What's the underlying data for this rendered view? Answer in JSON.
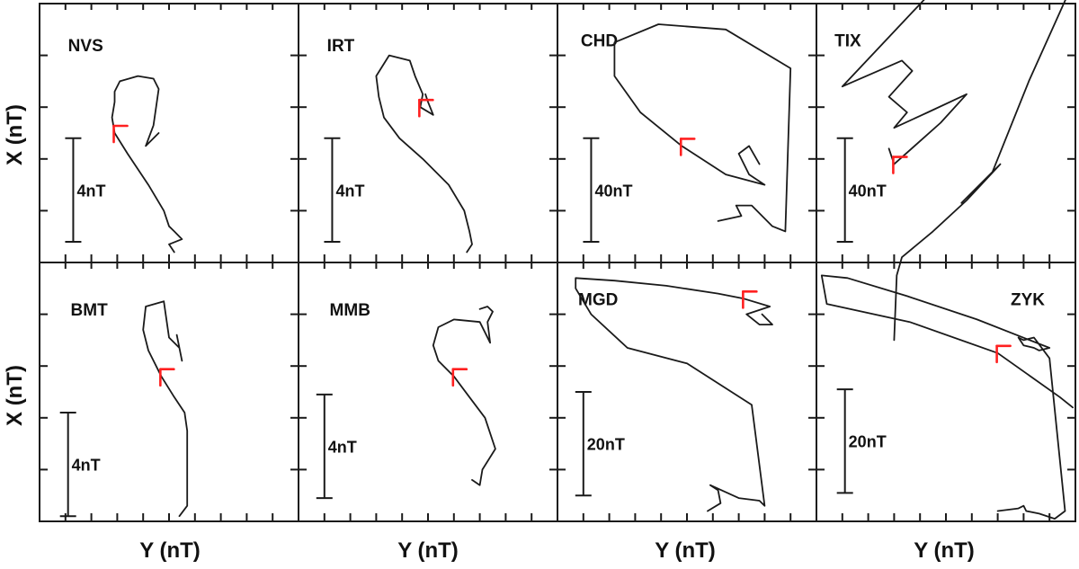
{
  "chart_data": {
    "type": "line",
    "title": "",
    "xlabel": "Y (nT)",
    "ylabel": "X (nT)",
    "ylabels": [
      "X (nT)",
      "X (nT)"
    ],
    "xlabels": [
      "Y (nT)",
      "Y (nT)",
      "Y (nT)",
      "Y (nT)"
    ],
    "grid": false,
    "legend": "none",
    "colors": {
      "trace": "#1a1a1a",
      "marker": "#ff2020",
      "frame": "#1a1a1a"
    },
    "panels": [
      {
        "station": "NVS",
        "scale_label": "4nT",
        "trace": [
          [
            0.52,
            0.96
          ],
          [
            0.5,
            0.93
          ],
          [
            0.55,
            0.91
          ],
          [
            0.52,
            0.88
          ],
          [
            0.5,
            0.86
          ],
          [
            0.48,
            0.8
          ],
          [
            0.42,
            0.7
          ],
          [
            0.34,
            0.58
          ],
          [
            0.29,
            0.5
          ],
          [
            0.28,
            0.44
          ],
          [
            0.29,
            0.38
          ],
          [
            0.29,
            0.34
          ],
          [
            0.31,
            0.3
          ],
          [
            0.38,
            0.28
          ],
          [
            0.44,
            0.29
          ],
          [
            0.46,
            0.33
          ],
          [
            0.45,
            0.4
          ],
          [
            0.44,
            0.47
          ],
          [
            0.41,
            0.55
          ],
          [
            0.46,
            0.5
          ],
          [
            0.44,
            0.52
          ]
        ]
      },
      {
        "station": "IRT",
        "scale_label": "4nT",
        "trace": [
          [
            0.65,
            0.96
          ],
          [
            0.67,
            0.93
          ],
          [
            0.66,
            0.88
          ],
          [
            0.64,
            0.8
          ],
          [
            0.58,
            0.7
          ],
          [
            0.48,
            0.6
          ],
          [
            0.39,
            0.52
          ],
          [
            0.33,
            0.44
          ],
          [
            0.31,
            0.36
          ],
          [
            0.3,
            0.28
          ],
          [
            0.35,
            0.2
          ],
          [
            0.43,
            0.22
          ],
          [
            0.45,
            0.28
          ],
          [
            0.48,
            0.35
          ],
          [
            0.47,
            0.4
          ],
          [
            0.52,
            0.43
          ],
          [
            0.5,
            0.38
          ],
          [
            0.49,
            0.35
          ]
        ]
      },
      {
        "station": "CHD",
        "scale_label": "40nT",
        "trace": [
          [
            0.62,
            0.84
          ],
          [
            0.71,
            0.82
          ],
          [
            0.69,
            0.78
          ],
          [
            0.75,
            0.78
          ],
          [
            0.83,
            0.86
          ],
          [
            0.88,
            0.88
          ],
          [
            0.9,
            0.25
          ],
          [
            0.65,
            0.1
          ],
          [
            0.39,
            0.08
          ],
          [
            0.22,
            0.15
          ],
          [
            0.22,
            0.28
          ],
          [
            0.32,
            0.42
          ],
          [
            0.48,
            0.55
          ],
          [
            0.65,
            0.66
          ],
          [
            0.8,
            0.7
          ],
          [
            0.74,
            0.66
          ],
          [
            0.7,
            0.58
          ],
          [
            0.74,
            0.55
          ],
          [
            0.78,
            0.62
          ]
        ]
      },
      {
        "station": "TIX",
        "scale_label": "40nT",
        "trace": [
          [
            0.3,
            1.3
          ],
          [
            0.31,
            1.05
          ],
          [
            0.33,
            0.98
          ],
          [
            0.45,
            0.88
          ],
          [
            0.58,
            0.76
          ],
          [
            0.71,
            0.62
          ],
          [
            0.56,
            0.77
          ],
          [
            0.68,
            0.65
          ],
          [
            0.82,
            0.3
          ],
          [
            1.0,
            -0.1
          ],
          [
            0.43,
            -0.03
          ],
          [
            0.1,
            0.32
          ],
          [
            0.33,
            0.22
          ],
          [
            0.37,
            0.26
          ],
          [
            0.28,
            0.36
          ],
          [
            0.35,
            0.42
          ],
          [
            0.3,
            0.48
          ],
          [
            0.43,
            0.42
          ],
          [
            0.58,
            0.35
          ],
          [
            0.48,
            0.46
          ],
          [
            0.3,
            0.62
          ],
          [
            0.28,
            0.56
          ]
        ]
      },
      {
        "station": "BMT",
        "scale_label": "4nT",
        "trace": [
          [
            0.54,
            0.98
          ],
          [
            0.57,
            0.94
          ],
          [
            0.57,
            0.8
          ],
          [
            0.57,
            0.65
          ],
          [
            0.56,
            0.58
          ],
          [
            0.52,
            0.52
          ],
          [
            0.47,
            0.44
          ],
          [
            0.42,
            0.34
          ],
          [
            0.4,
            0.26
          ],
          [
            0.41,
            0.17
          ],
          [
            0.48,
            0.15
          ],
          [
            0.49,
            0.22
          ],
          [
            0.5,
            0.29
          ],
          [
            0.54,
            0.33
          ],
          [
            0.53,
            0.28
          ],
          [
            0.55,
            0.38
          ]
        ]
      },
      {
        "station": "MMB",
        "scale_label": "4nT",
        "trace": [
          [
            0.67,
            0.84
          ],
          [
            0.7,
            0.86
          ],
          [
            0.71,
            0.8
          ],
          [
            0.76,
            0.72
          ],
          [
            0.72,
            0.6
          ],
          [
            0.66,
            0.52
          ],
          [
            0.6,
            0.44
          ],
          [
            0.54,
            0.38
          ],
          [
            0.52,
            0.32
          ],
          [
            0.54,
            0.25
          ],
          [
            0.6,
            0.22
          ],
          [
            0.7,
            0.23
          ],
          [
            0.72,
            0.27
          ],
          [
            0.74,
            0.31
          ],
          [
            0.73,
            0.23
          ],
          [
            0.75,
            0.19
          ],
          [
            0.73,
            0.17
          ],
          [
            0.7,
            0.18
          ]
        ]
      },
      {
        "station": "MGD",
        "scale_label": "20nT",
        "trace": [
          [
            0.58,
            0.96
          ],
          [
            0.63,
            0.93
          ],
          [
            0.62,
            0.88
          ],
          [
            0.59,
            0.86
          ],
          [
            0.7,
            0.91
          ],
          [
            0.78,
            0.92
          ],
          [
            0.8,
            0.94
          ],
          [
            0.75,
            0.55
          ],
          [
            0.5,
            0.39
          ],
          [
            0.27,
            0.33
          ],
          [
            0.13,
            0.2
          ],
          [
            0.07,
            0.1
          ],
          [
            0.07,
            0.06
          ],
          [
            0.22,
            0.07
          ],
          [
            0.42,
            0.09
          ],
          [
            0.62,
            0.12
          ],
          [
            0.72,
            0.14
          ],
          [
            0.82,
            0.17
          ],
          [
            0.73,
            0.2
          ],
          [
            0.78,
            0.24
          ],
          [
            0.83,
            0.24
          ],
          [
            0.79,
            0.2
          ]
        ]
      },
      {
        "station": "ZYK",
        "scale_label": "20nT",
        "trace": [
          [
            0.7,
            0.96
          ],
          [
            0.78,
            0.95
          ],
          [
            0.8,
            0.94
          ],
          [
            0.81,
            0.96
          ],
          [
            0.86,
            0.97
          ],
          [
            0.92,
            0.99
          ],
          [
            0.96,
            0.96
          ],
          [
            0.9,
            0.37
          ],
          [
            0.84,
            0.29
          ],
          [
            0.8,
            0.3
          ],
          [
            0.78,
            0.29
          ],
          [
            0.8,
            0.32
          ],
          [
            0.84,
            0.33
          ],
          [
            0.86,
            0.34
          ],
          [
            0.9,
            0.33
          ],
          [
            0.62,
            0.22
          ],
          [
            0.35,
            0.13
          ],
          [
            0.12,
            0.06
          ],
          [
            0.02,
            0.05
          ],
          [
            0.04,
            0.16
          ],
          [
            0.36,
            0.23
          ],
          [
            0.7,
            0.35
          ],
          [
            0.94,
            0.52
          ],
          [
            0.99,
            0.56
          ]
        ]
      }
    ]
  }
}
